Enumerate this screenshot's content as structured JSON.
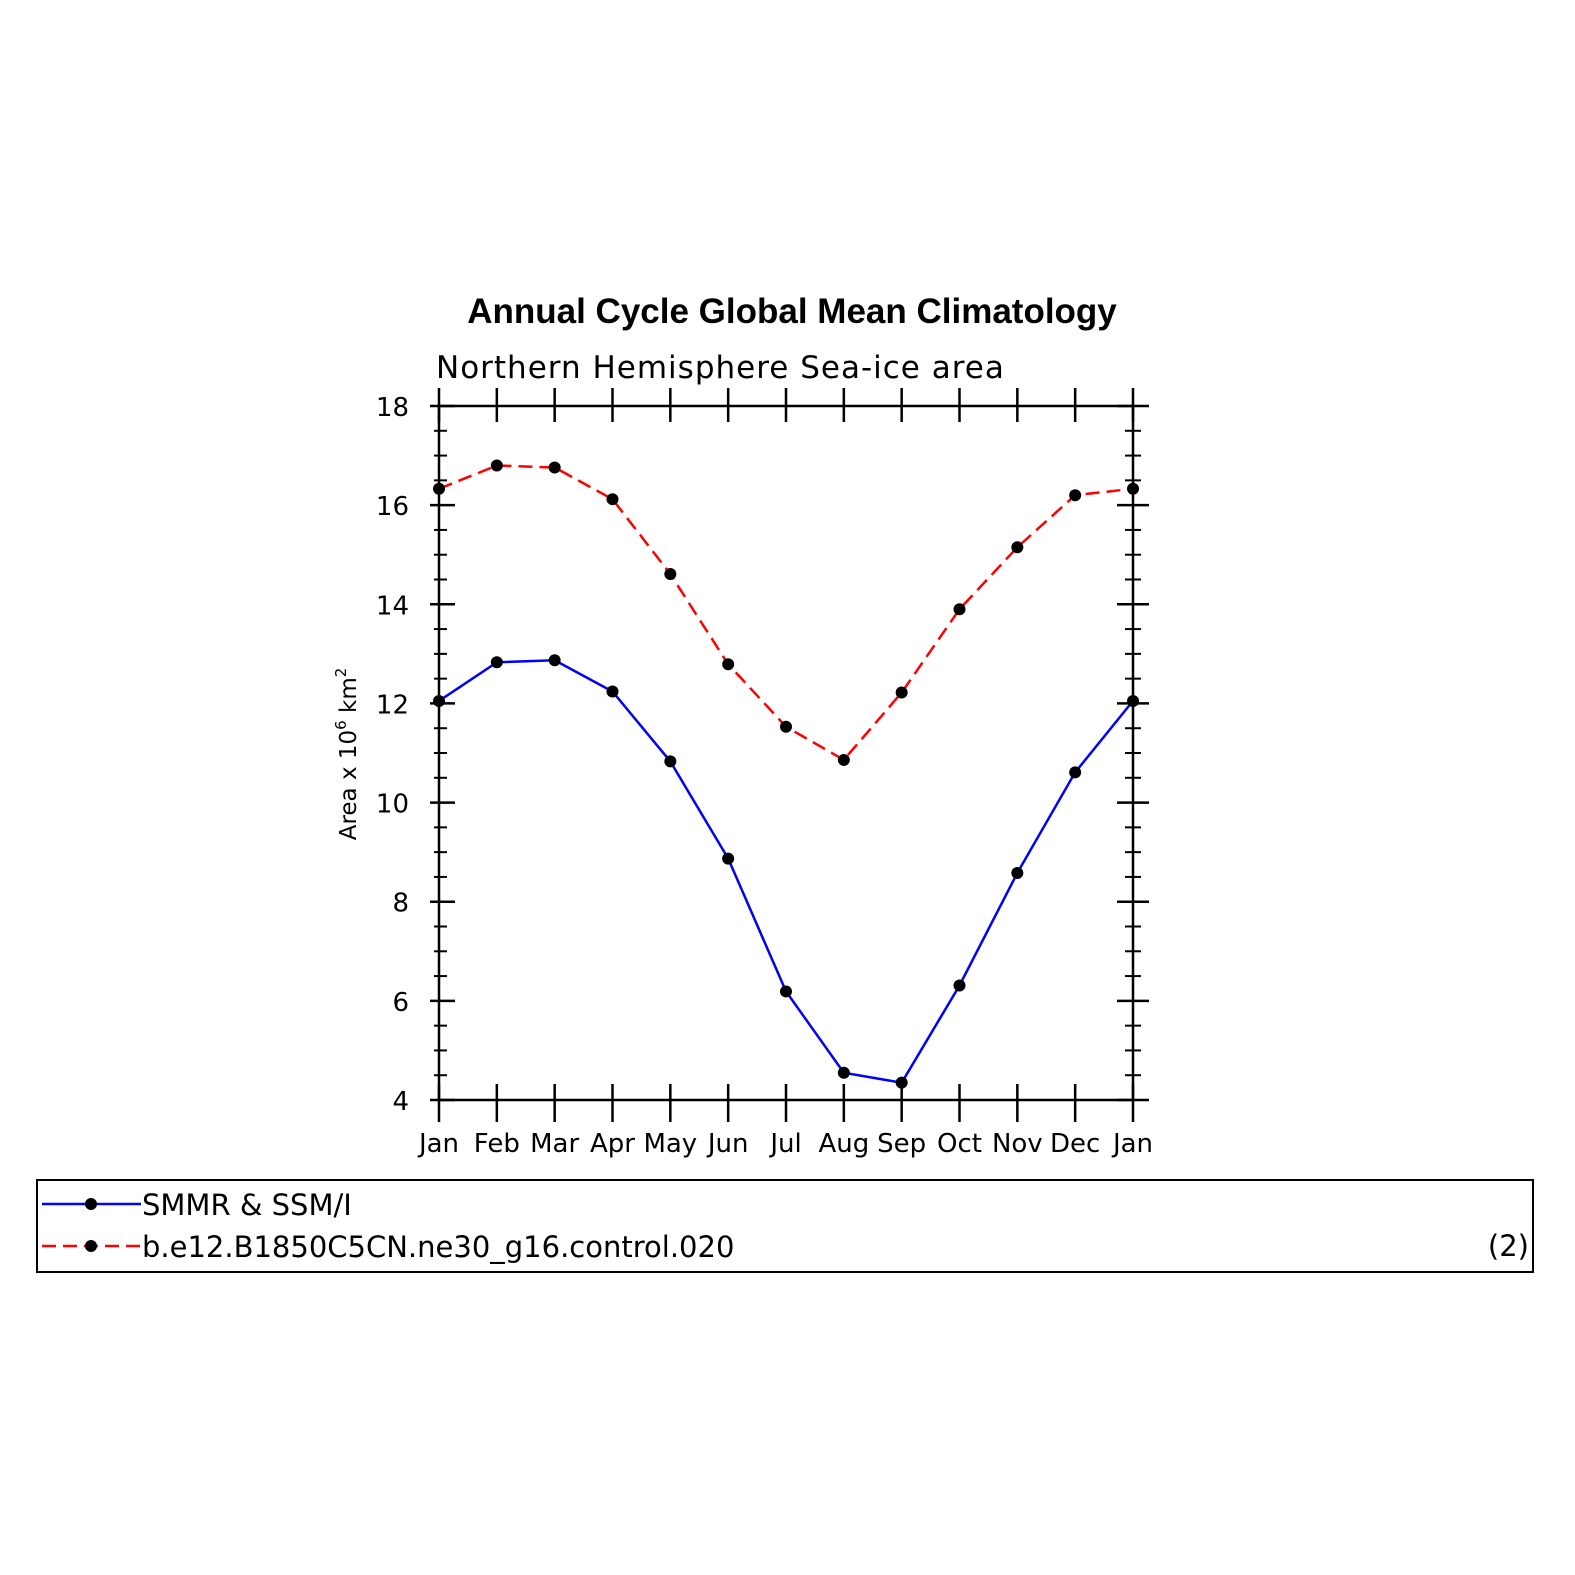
{
  "chart_data": {
    "type": "line",
    "title": "Annual Cycle Global Mean Climatology",
    "subtitle": "Northern Hemisphere Sea-ice area",
    "ylabel_prefix": "Area x 10",
    "ylabel_exp1": "6",
    "ylabel_unit": " km",
    "ylabel_exp2": "2",
    "xlabel": "",
    "categories": [
      "Jan",
      "Feb",
      "Mar",
      "Apr",
      "May",
      "Jun",
      "Jul",
      "Aug",
      "Sep",
      "Oct",
      "Nov",
      "Dec",
      "Jan"
    ],
    "ylim": [
      4,
      18
    ],
    "yticks": [
      4,
      6,
      8,
      10,
      12,
      14,
      16,
      18
    ],
    "series": [
      {
        "name": "SMMR & SSM/I",
        "color": "#0000ff",
        "dash": "solid",
        "values": [
          12.05,
          12.83,
          12.87,
          12.24,
          10.83,
          8.87,
          6.19,
          4.55,
          4.35,
          6.31,
          8.58,
          10.61,
          12.05
        ]
      },
      {
        "name": "b.e12.B1850C5CN.ne30_g16.control.020",
        "color": "#ff0000",
        "dash": "dashed",
        "values": [
          16.33,
          16.8,
          16.76,
          16.12,
          14.61,
          12.79,
          11.53,
          10.86,
          12.22,
          13.9,
          15.15,
          16.2,
          16.33
        ]
      }
    ],
    "legend_note": "(2)",
    "legend_placement": "bottom",
    "marker_color": "#000000"
  }
}
